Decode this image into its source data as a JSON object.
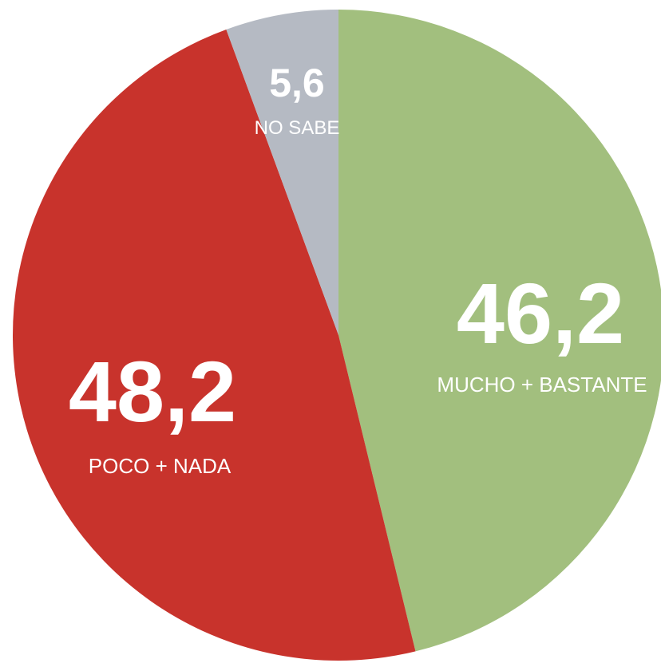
{
  "chart_data": {
    "type": "pie",
    "title": "",
    "slices": [
      {
        "label": "MUCHO + BASTANTE",
        "value": 46.2,
        "value_label": "46,2",
        "color": "#a2bf7e"
      },
      {
        "label": "POCO + NADA",
        "value": 48.2,
        "value_label": "48,2",
        "color": "#c8332c"
      },
      {
        "label": "NO SABE",
        "value": 5.6,
        "value_label": "5,6",
        "color": "#b5bac3"
      }
    ],
    "start_angle": "12 o'clock",
    "direction": "clockwise"
  }
}
